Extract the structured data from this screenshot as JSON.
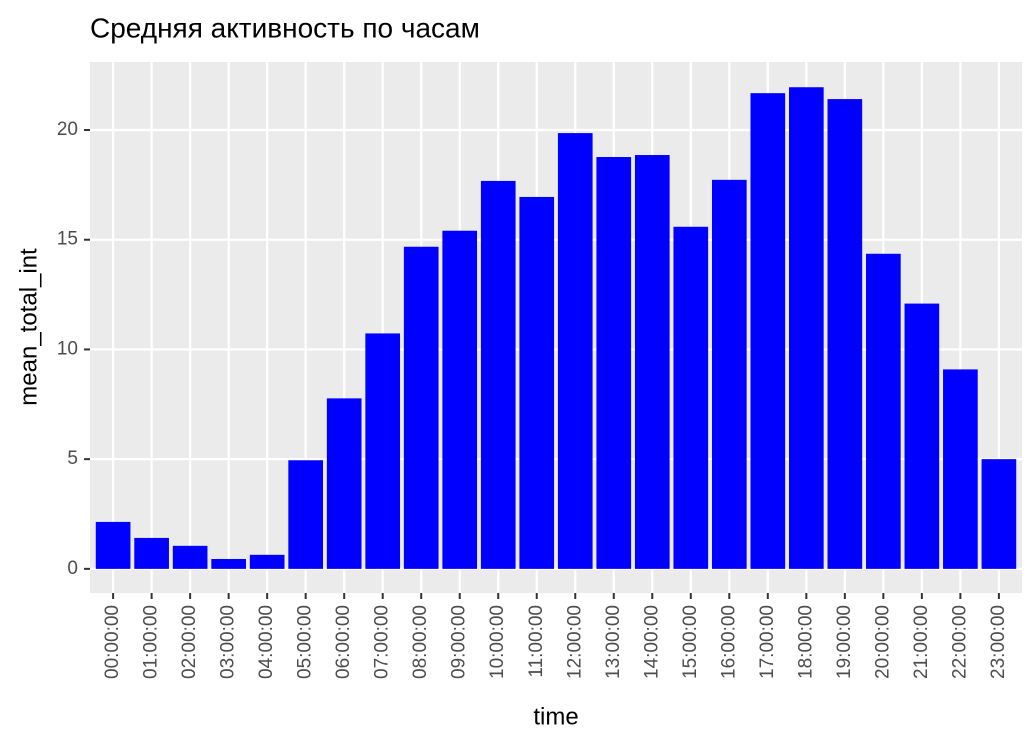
{
  "chart_data": {
    "type": "bar",
    "title": "Средняя активность по часам",
    "x_label": "time",
    "y_label": "mean_total_int",
    "categories": [
      "00:00:00",
      "01:00:00",
      "02:00:00",
      "03:00:00",
      "04:00:00",
      "05:00:00",
      "06:00:00",
      "07:00:00",
      "08:00:00",
      "09:00:00",
      "10:00:00",
      "11:00:00",
      "12:00:00",
      "13:00:00",
      "14:00:00",
      "15:00:00",
      "16:00:00",
      "17:00:00",
      "18:00:00",
      "19:00:00",
      "20:00:00",
      "21:00:00",
      "22:00:00",
      "23:00:00"
    ],
    "values": [
      2.14,
      1.41,
      1.05,
      0.45,
      0.64,
      4.95,
      7.77,
      10.73,
      14.68,
      15.41,
      17.68,
      16.95,
      19.86,
      18.77,
      18.86,
      15.59,
      17.73,
      21.68,
      21.95,
      21.41,
      14.36,
      12.09,
      9.09,
      5.0
    ],
    "color": "#0000FF",
    "ylim": [
      -1.1,
      23.1
    ],
    "yticks": [
      0,
      5,
      10,
      15,
      20
    ],
    "grid": true
  }
}
